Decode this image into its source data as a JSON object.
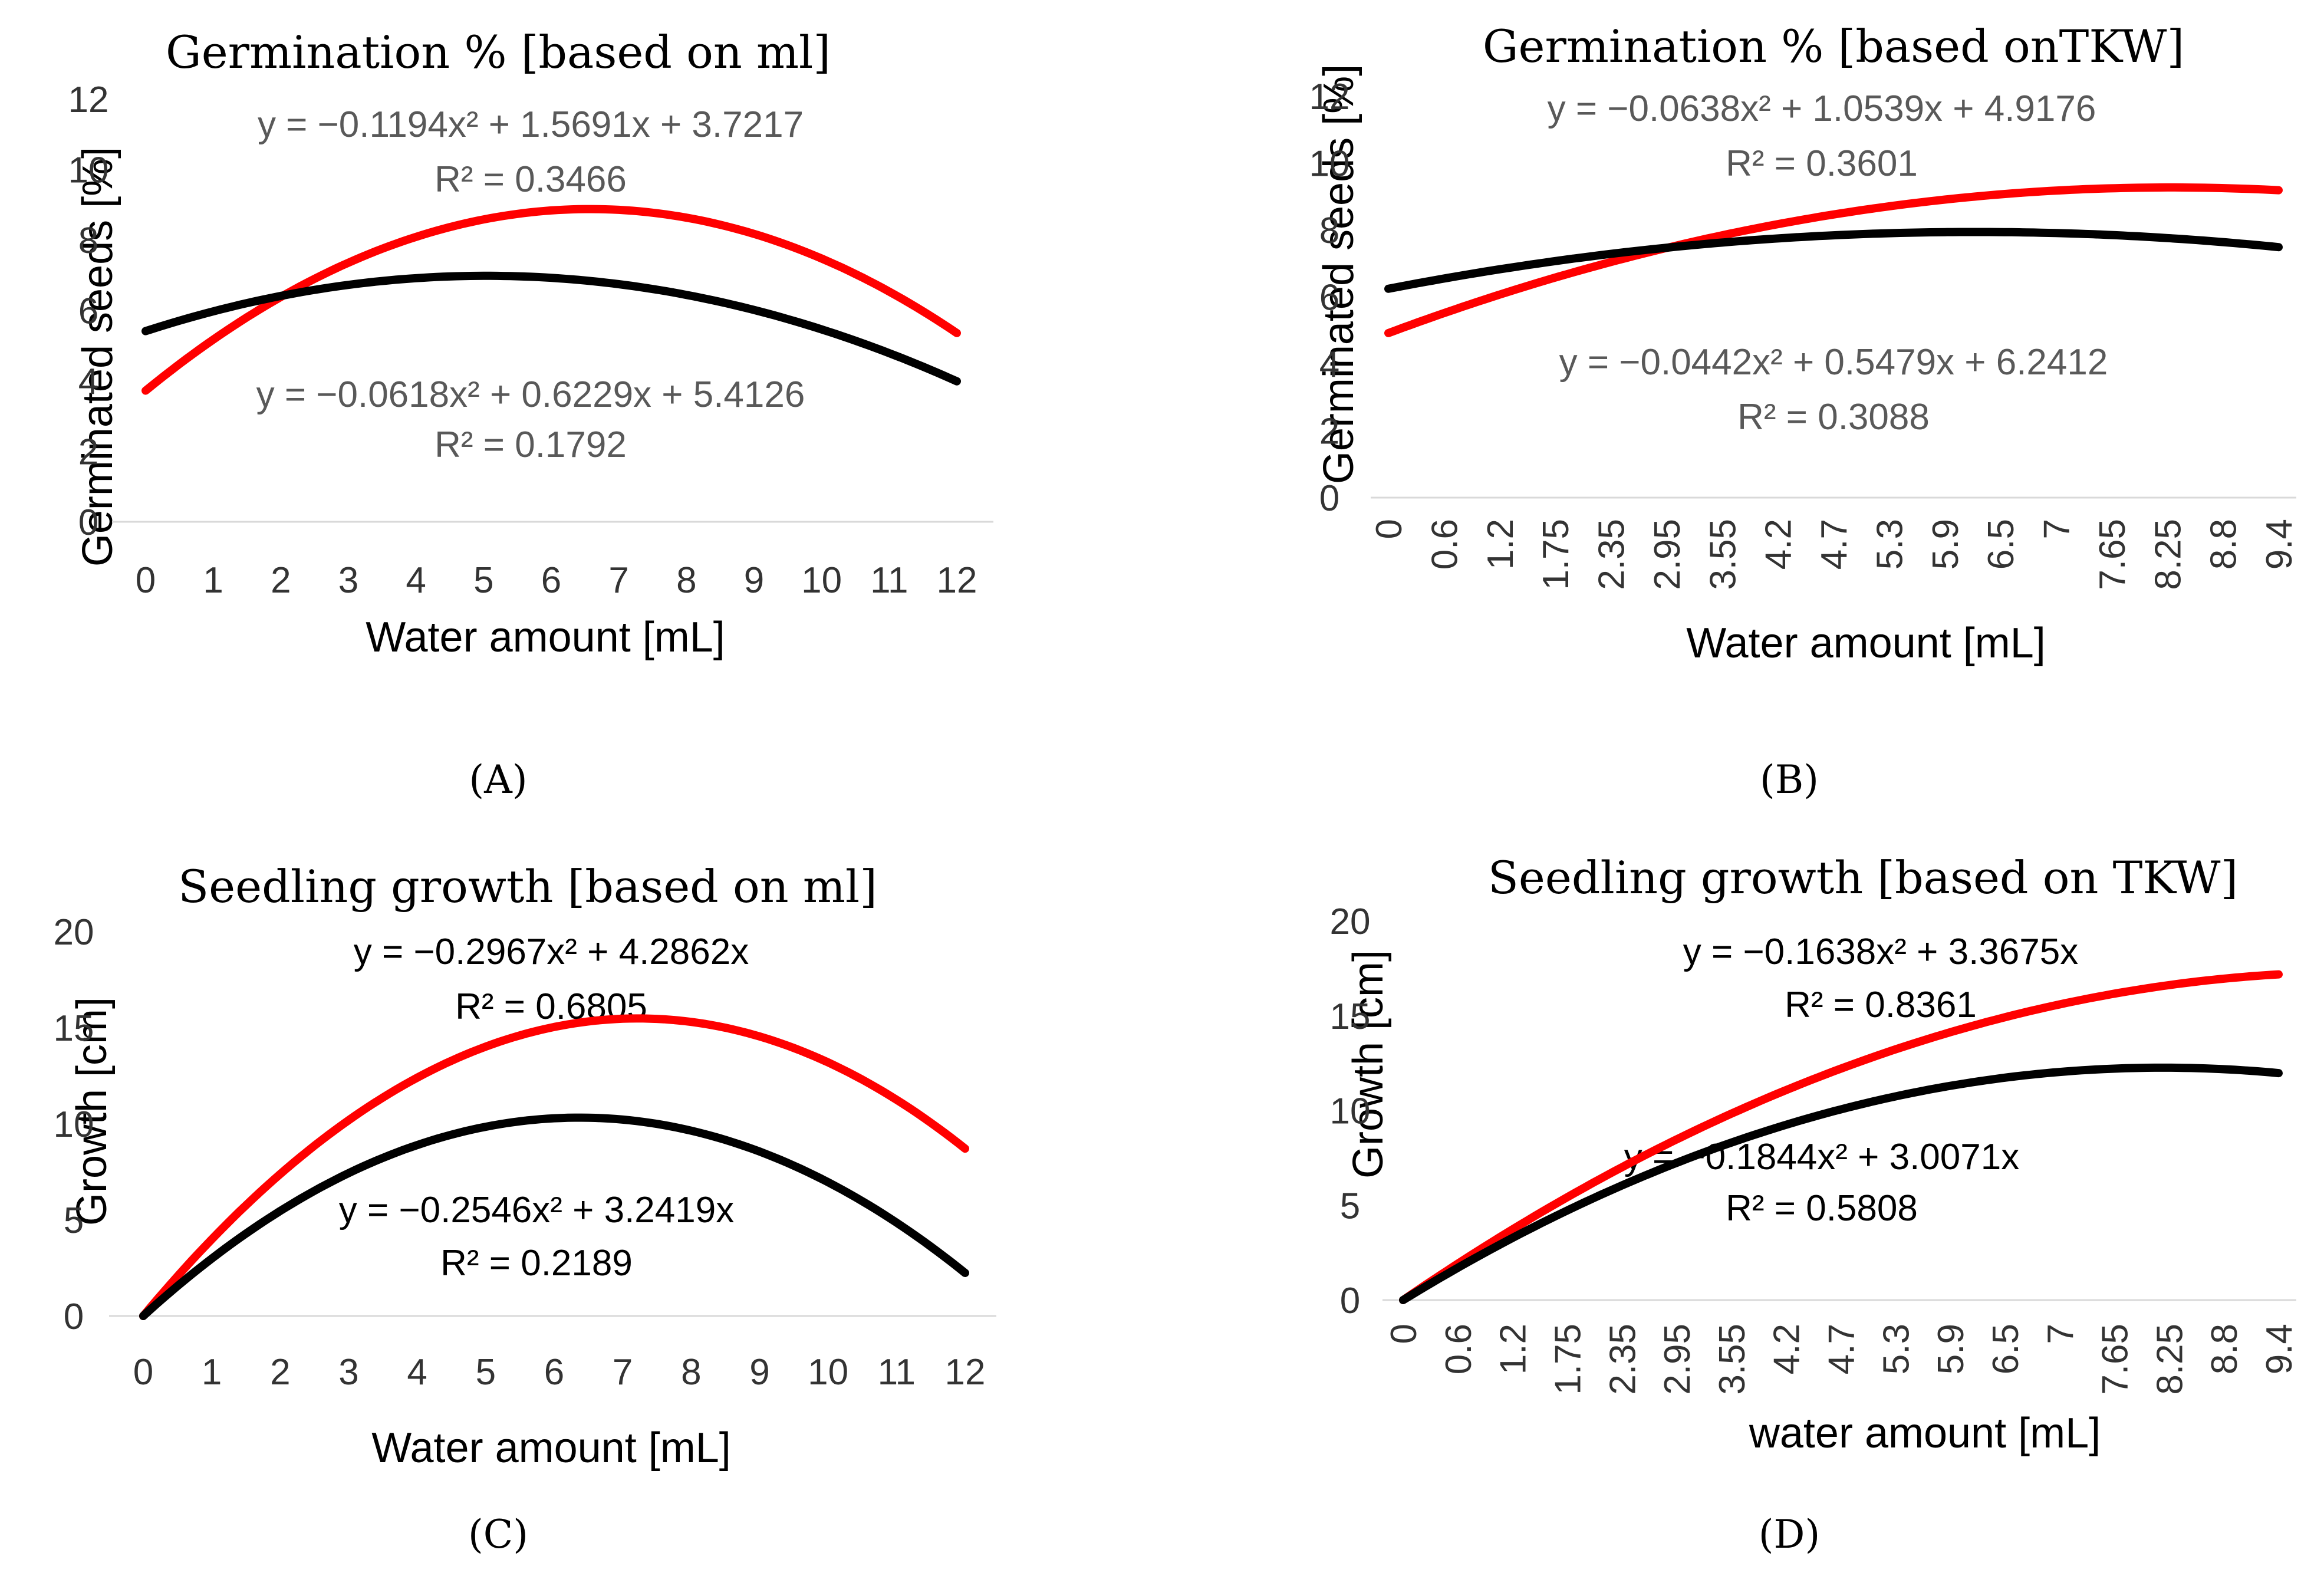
{
  "figure": {
    "panel_captions": [
      "(A)",
      "(B)",
      "(C)",
      "(D)"
    ]
  },
  "chart_data": [
    {
      "type": "line",
      "panel": "(A)",
      "title": "Germination % [based on ml]",
      "xlabel": "Water amount [mL]",
      "ylabel": "Germinated seeds [%]",
      "categories": [
        "0",
        "1",
        "2",
        "3",
        "4",
        "5",
        "6",
        "7",
        "8",
        "9",
        "10",
        "11",
        "12"
      ],
      "y_ticks": [
        "0",
        "2",
        "4",
        "6",
        "8",
        "10",
        "12"
      ],
      "ylim": [
        0,
        12
      ],
      "tick_rotation": 0,
      "series": [
        {
          "name": "red",
          "color": "#ff0000",
          "coeffs": [
            -0.1194,
            1.5691,
            3.7217
          ],
          "equation": "y = −0.1194x² + 1.5691x + 3.7217",
          "r2": "R² = 0.3466"
        },
        {
          "name": "black",
          "color": "#000000",
          "coeffs": [
            -0.0618,
            0.6229,
            5.4126
          ],
          "equation": "y = −0.0618x² + 0.6229x + 5.4126",
          "r2": "R² = 0.1792"
        }
      ]
    },
    {
      "type": "line",
      "panel": "(B)",
      "title": "Germination % [based onTKW]",
      "xlabel": "Water amount [mL]",
      "ylabel": "Germinated seeds [%]",
      "categories": [
        "0",
        "0.6",
        "1.2",
        "1.75",
        "2.35",
        "2.95",
        "3.55",
        "4.2",
        "4.7",
        "5.3",
        "5.9",
        "6.5",
        "7",
        "7.65",
        "8.25",
        "8.8",
        "9.4"
      ],
      "y_ticks": [
        "0",
        "2",
        "4",
        "6",
        "8",
        "10",
        "12"
      ],
      "ylim": [
        0,
        12
      ],
      "tick_rotation": -90,
      "series": [
        {
          "name": "red",
          "color": "#ff0000",
          "coeffs": [
            -0.0638,
            1.0539,
            4.9176
          ],
          "equation": "y = −0.0638x² + 1.0539x + 4.9176",
          "r2": "R² = 0.3601"
        },
        {
          "name": "black",
          "color": "#000000",
          "coeffs": [
            -0.0442,
            0.5479,
            6.2412
          ],
          "equation": "y = −0.0442x² + 0.5479x + 6.2412",
          "r2": "R² = 0.3088"
        }
      ]
    },
    {
      "type": "line",
      "panel": "(C)",
      "title": "Seedling growth [based on ml]",
      "xlabel": "Water amount [mL]",
      "ylabel": "Growth [cm]",
      "categories": [
        "0",
        "1",
        "2",
        "3",
        "4",
        "5",
        "6",
        "7",
        "8",
        "9",
        "10",
        "11",
        "12"
      ],
      "y_ticks": [
        "0",
        "5",
        "10",
        "15",
        "20"
      ],
      "ylim": [
        0,
        20
      ],
      "tick_rotation": 0,
      "series": [
        {
          "name": "red",
          "color": "#ff0000",
          "coeffs": [
            -0.2967,
            4.2862,
            0
          ],
          "equation": "y = −0.2967x² + 4.2862x",
          "r2": "R² = 0.6805"
        },
        {
          "name": "black",
          "color": "#000000",
          "coeffs": [
            -0.2546,
            3.2419,
            0
          ],
          "equation": "y = −0.2546x² + 3.2419x",
          "r2": "R² = 0.2189"
        }
      ]
    },
    {
      "type": "line",
      "panel": "(D)",
      "title": "Seedling growth [based on TKW]",
      "xlabel": "water amount [mL]",
      "ylabel": "Growth [cm]",
      "categories": [
        "0",
        "0.6",
        "1.2",
        "1.75",
        "2.35",
        "2.95",
        "3.55",
        "4.2",
        "4.7",
        "5.3",
        "5.9",
        "6.5",
        "7",
        "7.65",
        "8.25",
        "8.8",
        "9.4"
      ],
      "y_ticks": [
        "0",
        "5",
        "10",
        "15",
        "20"
      ],
      "ylim": [
        0,
        20
      ],
      "tick_rotation": -90,
      "series": [
        {
          "name": "red",
          "color": "#ff0000",
          "coeffs": [
            -0.1638,
            3.3675,
            0
          ],
          "equation": "y = −0.1638x² + 3.3675x",
          "r2": "R² = 0.8361"
        },
        {
          "name": "black",
          "color": "#000000",
          "coeffs": [
            -0.1844,
            3.0071,
            0
          ],
          "equation": "y = −0.1844x² + 3.0071x",
          "r2": "R² = 0.5808"
        }
      ]
    }
  ]
}
